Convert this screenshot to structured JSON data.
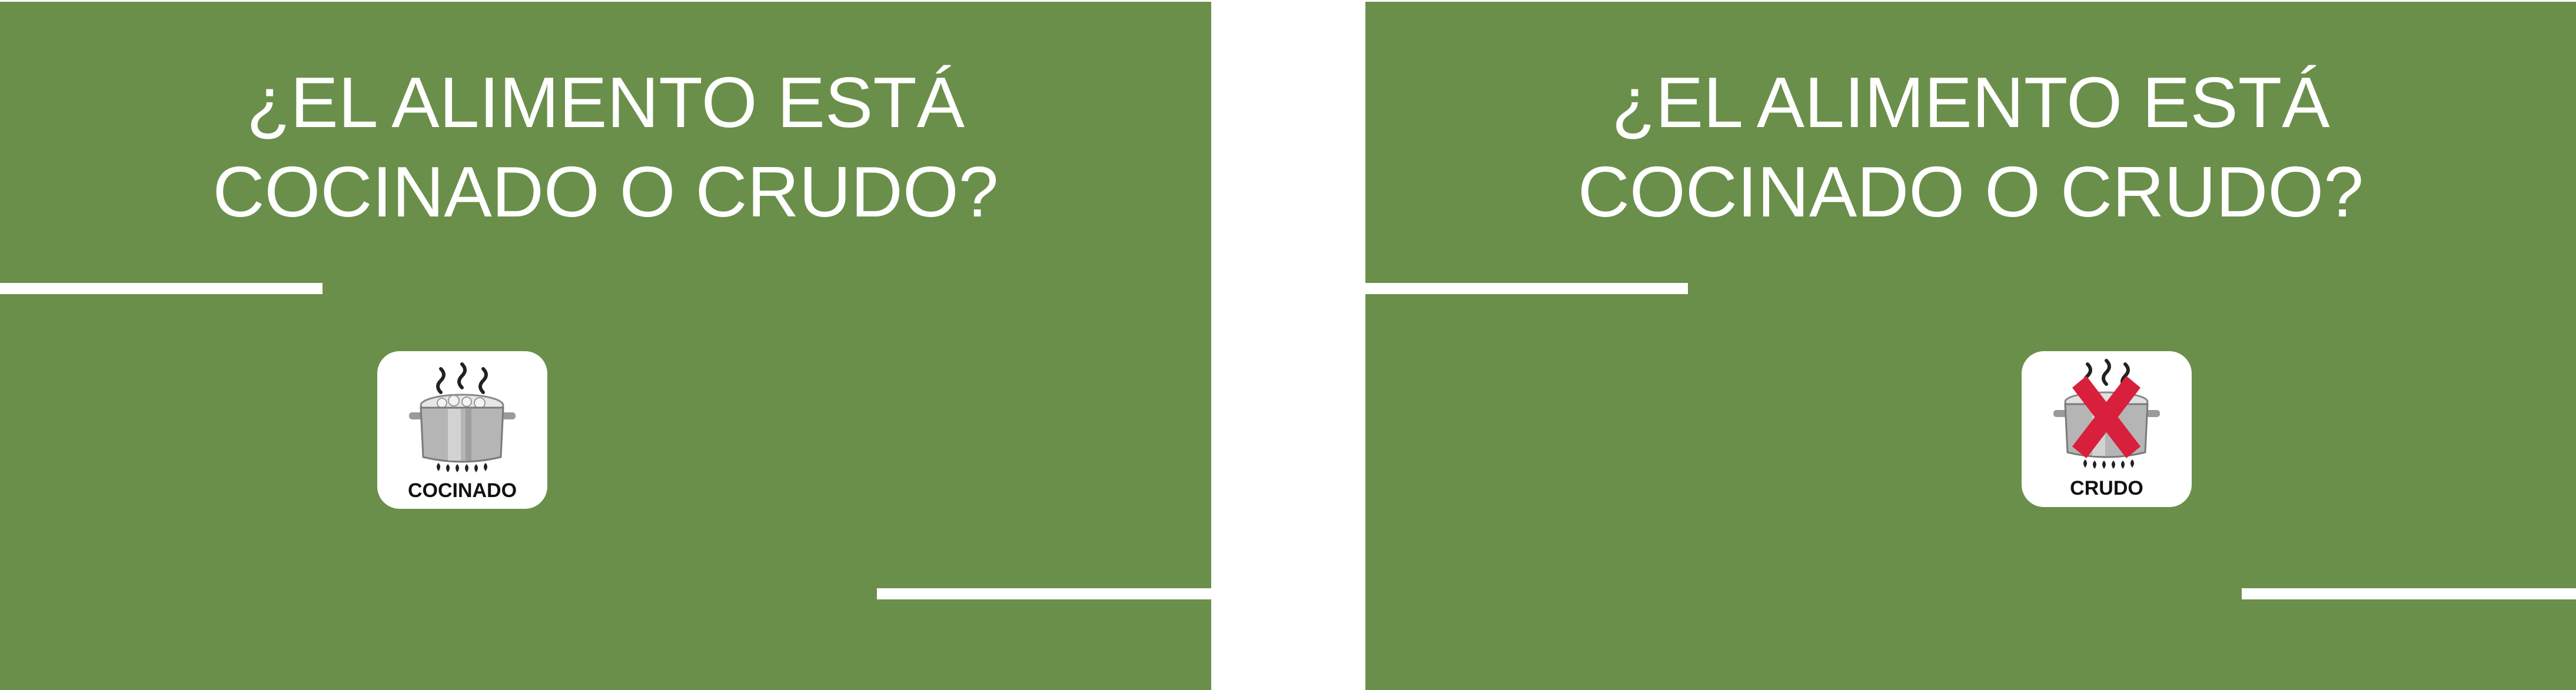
{
  "cards": [
    {
      "question_line1": "¿EL ALIMENTO ESTÁ",
      "question_line2": "COCINADO O CRUDO?",
      "icon": "boiling-pot-icon",
      "label": "COCINADO"
    },
    {
      "question_line1": "¿EL ALIMENTO ESTÁ",
      "question_line2": "COCINADO O CRUDO?",
      "icon": "crossed-pot-icon",
      "label": "CRUDO"
    }
  ],
  "colors": {
    "card_background": "#6a8f4a",
    "text": "#ffffff",
    "cross": "#d81f3c",
    "tile": "#ffffff"
  }
}
